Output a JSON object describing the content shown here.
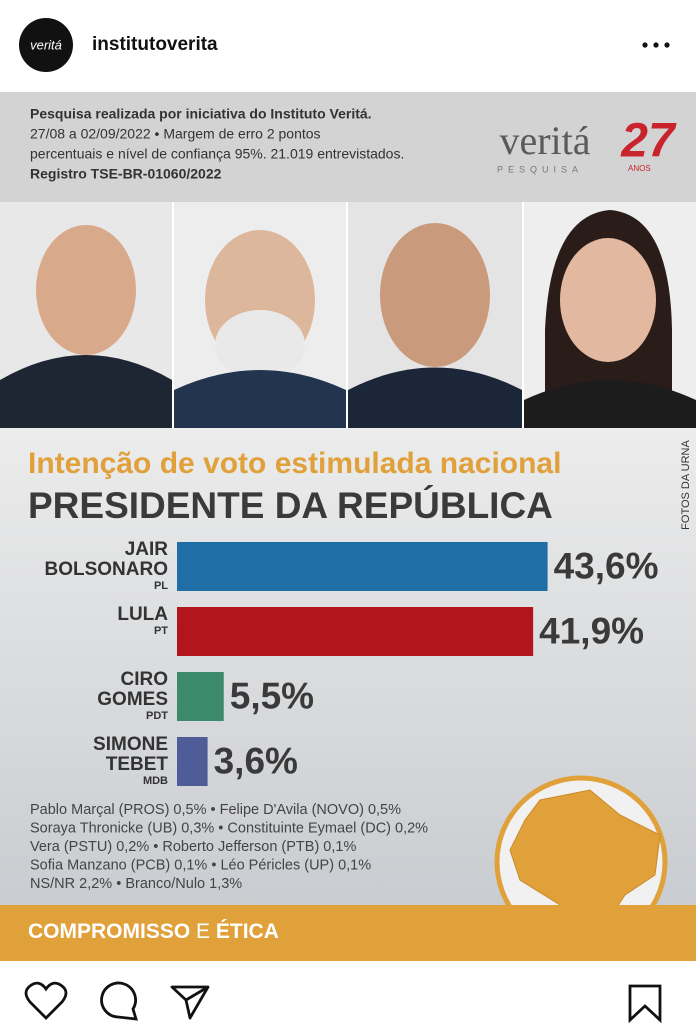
{
  "post": {
    "account": "institutoverita",
    "avatar_text": "veritá",
    "header_lines": [
      "Pesquisa realizada por iniciativa do Instituto Veritá.",
      "27/08 a 02/09/2022 • Margem de erro 2 pontos",
      "percentuais e nível de confiança 95%. 21.019 entrevistados.",
      "Registro TSE-BR-01060/2022"
    ],
    "logo": {
      "name": "veritá",
      "tagline": "PESQUISA",
      "years": "27",
      "years_label": "ANOS"
    },
    "photo_credit": "FOTOS DA URNA",
    "others": [
      "Pablo Marçal (PROS) 0,5% • Felipe D'Avila (NOVO) 0,5%",
      "Soraya Thronicke (UB) 0,3% • Constituinte Eymael (DC) 0,2%",
      "Vera (PSTU) 0,2% • Roberto Jefferson (PTB) 0,1%",
      "Sofia Manzano (PCB) 0,1% • Léo Péricles (UP) 0,1%",
      "NS/NR 2,2% • Branco/Nulo 1,3%"
    ],
    "footer": [
      "COMPROMISSO",
      "E",
      "ÉTICA"
    ]
  },
  "chart_data": {
    "type": "bar",
    "orientation": "horizontal",
    "title": "Intenção de voto estimulada nacional",
    "subtitle": "PRESIDENTE DA REPÚBLICA",
    "categories": [
      [
        "JAIR",
        "BOLSONARO"
      ],
      [
        "LULA"
      ],
      [
        "CIRO",
        "GOMES"
      ],
      [
        "SIMONE",
        "TEBET"
      ]
    ],
    "parties": [
      "PL",
      "PT",
      "PDT",
      "MDB"
    ],
    "values": [
      43.6,
      41.9,
      5.5,
      3.6
    ],
    "value_labels": [
      "43,6%",
      "41,9%",
      "5,5%",
      "3,6%"
    ],
    "colors": [
      "#1f6ea6",
      "#b3151d",
      "#3b8a6c",
      "#4e5c98"
    ]
  }
}
